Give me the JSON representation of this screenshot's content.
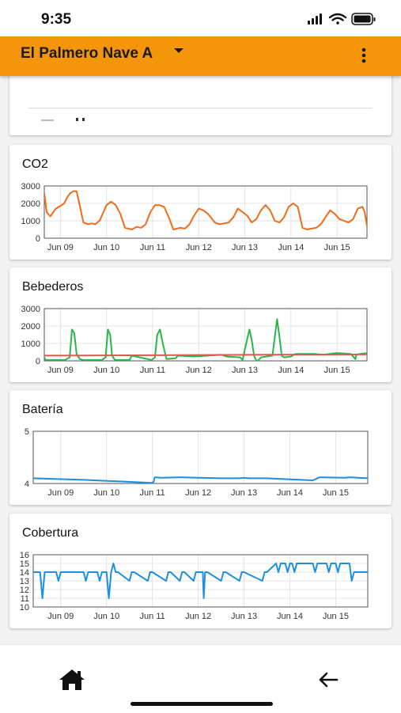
{
  "status_bar": {
    "time": "9:35",
    "icons": [
      "signal-icon",
      "wifi-icon",
      "battery-icon"
    ]
  },
  "app_bar": {
    "title": "El Palmero Nave A",
    "title_icon": "caret-down-icon",
    "menu_icon": "more-vert-icon",
    "color": "#f5960a"
  },
  "bottom_nav": {
    "items": [
      {
        "icon": "home-icon"
      },
      {
        "icon": "arrow-left-icon"
      }
    ]
  },
  "cards": {
    "co2": {
      "title": "CO2"
    },
    "bebederos": {
      "title": "Bebederos"
    },
    "bateria": {
      "title": "Batería"
    },
    "cobertura": {
      "title": "Cobertura"
    }
  },
  "chart_data": [
    {
      "type": "line",
      "title": "",
      "xlabel": "",
      "ylabel": "",
      "x_ticks": [
        "Jun 09",
        "Jun 10",
        "Jun 11",
        "Jun 12",
        "Jun 13",
        "Jun 14",
        "Jun 15"
      ],
      "x_range": [
        8.65,
        15.65
      ],
      "ylim": [
        0,
        3000
      ],
      "y_ticks": [
        "0",
        "1000",
        "2000",
        "3000"
      ],
      "grid": true,
      "series": [
        {
          "color": "#ef6c1a",
          "x": [
            8.65,
            8.7,
            8.78,
            8.9,
            9.0,
            9.08,
            9.16,
            9.22,
            9.28,
            9.35,
            9.5,
            9.6,
            9.68,
            9.75,
            9.85,
            9.95,
            10.0,
            10.1,
            10.2,
            10.3,
            10.4,
            10.55,
            10.65,
            10.75,
            10.85,
            10.95,
            11.05,
            11.15,
            11.25,
            11.35,
            11.45,
            11.6,
            11.7,
            11.8,
            11.9,
            12.0,
            12.1,
            12.2,
            12.35,
            12.45,
            12.55,
            12.65,
            12.75,
            12.85,
            12.95,
            13.05,
            13.15,
            13.25,
            13.35,
            13.45,
            13.55,
            13.65,
            13.75,
            13.85,
            13.95,
            14.05,
            14.15,
            14.25,
            14.35,
            14.45,
            14.55,
            14.65,
            14.75,
            14.85,
            14.95,
            15.05,
            15.15,
            15.25,
            15.35,
            15.45,
            15.55,
            15.6,
            15.65
          ],
          "y": [
            2600,
            1500,
            1250,
            1700,
            1850,
            2000,
            2400,
            2600,
            2700,
            2700,
            900,
            800,
            850,
            800,
            1000,
            1600,
            1900,
            2100,
            1900,
            1400,
            600,
            500,
            650,
            600,
            800,
            1500,
            1900,
            1900,
            1800,
            1200,
            500,
            600,
            550,
            800,
            1300,
            1700,
            1600,
            1400,
            900,
            800,
            850,
            900,
            1200,
            1700,
            1500,
            1300,
            900,
            1100,
            1600,
            1900,
            1600,
            1000,
            900,
            1200,
            1800,
            2000,
            1800,
            600,
            500,
            550,
            600,
            800,
            1200,
            1600,
            1400,
            1100,
            1000,
            900,
            1100,
            1700,
            1800,
            1500,
            700
          ]
        }
      ]
    },
    {
      "type": "line",
      "title": "",
      "xlabel": "",
      "ylabel": "",
      "x_ticks": [
        "Jun 09",
        "Jun 10",
        "Jun 11",
        "Jun 12",
        "Jun 13",
        "Jun 14",
        "Jun 15"
      ],
      "x_range": [
        8.65,
        15.65
      ],
      "ylim": [
        0,
        3000
      ],
      "y_ticks": [
        "0",
        "1000",
        "2000",
        "3000"
      ],
      "grid": true,
      "series": [
        {
          "color": "#2bb54b",
          "x": [
            8.65,
            8.68,
            8.72,
            9.1,
            9.2,
            9.25,
            9.3,
            9.35,
            9.42,
            9.5,
            9.9,
            9.98,
            10.03,
            10.08,
            10.12,
            10.18,
            10.5,
            10.55,
            10.98,
            11.05,
            11.1,
            11.16,
            11.22,
            11.3,
            11.5,
            11.55,
            11.9,
            12.2,
            12.5,
            12.55,
            12.6,
            12.9,
            12.95,
            13.03,
            13.1,
            13.15,
            13.2,
            13.25,
            13.3,
            13.35,
            13.6,
            13.7,
            13.75,
            13.8,
            13.85,
            14.0,
            14.1,
            14.5,
            14.7,
            15.0,
            15.3,
            15.4,
            15.42,
            15.5,
            15.65
          ],
          "y": [
            200,
            50,
            50,
            50,
            200,
            1800,
            1600,
            400,
            100,
            50,
            50,
            200,
            1800,
            1500,
            300,
            50,
            50,
            300,
            50,
            200,
            1500,
            1800,
            1000,
            100,
            150,
            300,
            250,
            300,
            350,
            300,
            250,
            200,
            50,
            1000,
            1800,
            1200,
            300,
            0,
            50,
            200,
            300,
            2400,
            1400,
            300,
            200,
            250,
            400,
            400,
            350,
            450,
            400,
            100,
            350,
            400,
            450
          ]
        },
        {
          "color": "#e0574b",
          "x": [
            8.65,
            9.5,
            10.5,
            11.5,
            12.5,
            13.5,
            14.5,
            15.65
          ],
          "y": [
            300,
            310,
            320,
            330,
            340,
            350,
            360,
            370
          ]
        }
      ]
    },
    {
      "type": "line",
      "title": "",
      "xlabel": "",
      "ylabel": "",
      "x_ticks": [
        "Jun 09",
        "Jun 10",
        "Jun 11",
        "Jun 12",
        "Jun 13",
        "Jun 14",
        "Jun 15"
      ],
      "x_range": [
        8.4,
        15.7
      ],
      "ylim": [
        4,
        5
      ],
      "y_ticks": [
        "4",
        "5"
      ],
      "grid": true,
      "series": [
        {
          "color": "#1e8fe0",
          "x": [
            8.4,
            8.8,
            9.5,
            10.3,
            11.0,
            11.03,
            11.05,
            11.2,
            11.6,
            12.0,
            12.5,
            12.9,
            13.0,
            13.1,
            13.5,
            14.0,
            14.5,
            14.6,
            14.65,
            15.2,
            15.3,
            15.7
          ],
          "y": [
            4.1,
            4.09,
            4.07,
            4.04,
            4.01,
            4.04,
            4.12,
            4.11,
            4.12,
            4.11,
            4.1,
            4.1,
            4.11,
            4.1,
            4.1,
            4.08,
            4.06,
            4.1,
            4.12,
            4.11,
            4.12,
            4.1
          ]
        }
      ]
    },
    {
      "type": "line",
      "title": "",
      "xlabel": "",
      "ylabel": "",
      "x_ticks": [
        "Jun 09",
        "Jun 10",
        "Jun 11",
        "Jun 12",
        "Jun 13",
        "Jun 14",
        "Jun 15"
      ],
      "x_range": [
        8.4,
        15.7
      ],
      "ylim": [
        10,
        16
      ],
      "y_ticks": [
        "10",
        "11",
        "12",
        "13",
        "14",
        "15",
        "16"
      ],
      "grid": true,
      "series": [
        {
          "color": "#1e8fe0",
          "x": [
            8.4,
            8.55,
            8.6,
            8.65,
            8.9,
            8.95,
            9.0,
            9.5,
            9.55,
            9.6,
            9.8,
            9.85,
            9.9,
            10.0,
            10.05,
            10.1,
            10.15,
            10.2,
            10.25,
            10.5,
            10.55,
            10.6,
            10.9,
            10.95,
            11.0,
            11.3,
            11.35,
            11.4,
            11.6,
            11.65,
            11.7,
            11.9,
            11.95,
            12.0,
            12.1,
            12.12,
            12.15,
            12.2,
            12.5,
            12.55,
            12.6,
            12.9,
            12.95,
            13.0,
            13.4,
            13.45,
            13.5,
            13.7,
            13.75,
            13.8,
            13.9,
            13.95,
            14.0,
            14.05,
            14.1,
            14.15,
            14.2,
            14.5,
            14.55,
            14.6,
            14.8,
            14.85,
            14.9,
            15.0,
            15.05,
            15.1,
            15.3,
            15.35,
            15.4,
            15.6,
            15.65,
            15.7
          ],
          "y": [
            14,
            14,
            11,
            14,
            14,
            13,
            14,
            14,
            13,
            14,
            14,
            13,
            14,
            14,
            11,
            14,
            15,
            14,
            14,
            13,
            14,
            14,
            13,
            14,
            14,
            13,
            14,
            14,
            13,
            14,
            14,
            13,
            14,
            14,
            14,
            11,
            14,
            14,
            13,
            14,
            14,
            13,
            14,
            14,
            13,
            14,
            14,
            15,
            14,
            15,
            15,
            14,
            15,
            15,
            14,
            15,
            15,
            15,
            14,
            15,
            15,
            14,
            15,
            15,
            14,
            15,
            15,
            13,
            14,
            14,
            14,
            14
          ]
        }
      ]
    }
  ]
}
